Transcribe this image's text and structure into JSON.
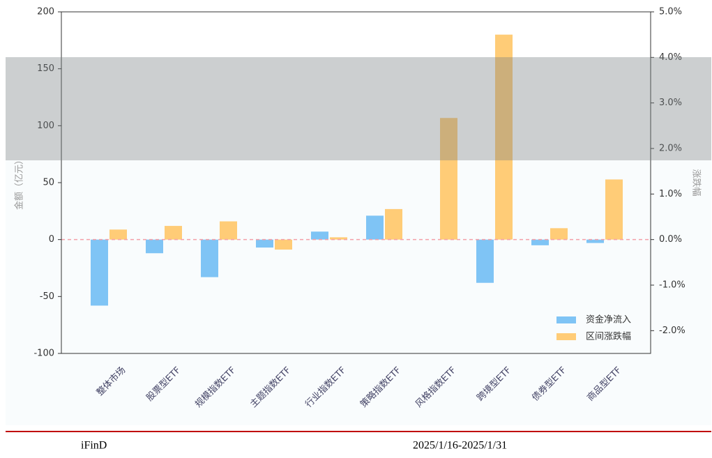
{
  "chart_data": {
    "type": "bar",
    "categories": [
      "整体市场",
      "股票型ETF",
      "规模指数ETF",
      "主题指数ETF",
      "行业指数ETF",
      "策略指数ETF",
      "风格指数ETF",
      "跨境型ETF",
      "债券型ETF",
      "商品型ETF"
    ],
    "series": [
      {
        "name": "资金净流入",
        "color": "#7fc4f5",
        "values": [
          -58,
          -12,
          -33,
          -7,
          7,
          21,
          0,
          -38,
          -5,
          -3
        ]
      },
      {
        "name": "区间涨跌幅",
        "color": "#ffcc77",
        "axis": "y2",
        "values": [
          0.22,
          0.3,
          0.4,
          -0.22,
          0.05,
          0.67,
          2.67,
          4.5,
          0.25,
          1.32
        ]
      }
    ],
    "ylabel": "金额（亿元）",
    "y2label": "涨跌幅",
    "ylim": [
      -100,
      200
    ],
    "yticks": [
      -100,
      -50,
      0,
      50,
      100,
      150,
      200
    ],
    "y2lim": [
      -2.5,
      5.0
    ],
    "y2ticks": [
      {
        "value": -2,
        "label": "-2.0%"
      },
      {
        "value": -1,
        "label": "-1.0%"
      },
      {
        "value": 0,
        "label": "0.0%"
      },
      {
        "value": 1,
        "label": "1.0%"
      },
      {
        "value": 2,
        "label": "2.0%"
      },
      {
        "value": 3,
        "label": "3.0%"
      },
      {
        "value": 4,
        "label": "4.0%"
      },
      {
        "value": 5,
        "label": "5.0%"
      }
    ],
    "legend": "lower right",
    "footer_left": "iFinD",
    "footer_right": "2025/1/16-2025/1/31"
  }
}
